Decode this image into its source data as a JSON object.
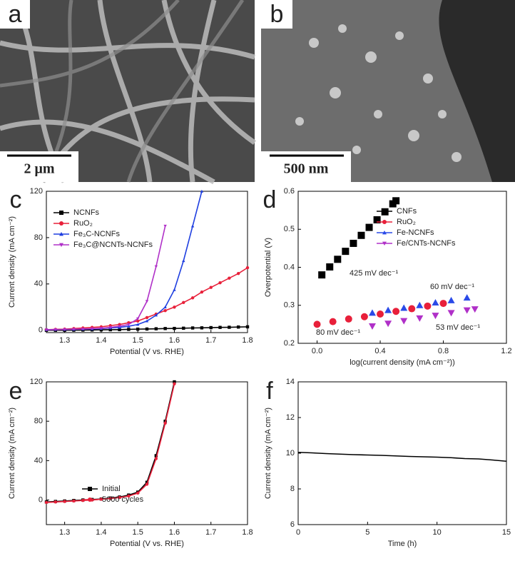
{
  "images": [
    {
      "label": "a",
      "scale_bar": "2 μm"
    },
    {
      "label": "b",
      "scale_bar": "500 nm"
    }
  ],
  "chart_data": [
    {
      "type": "line",
      "label": "c",
      "xlabel": "Potential (V vs. RHE)",
      "ylabel": "Current density (mA cm⁻²)",
      "xlim": [
        1.25,
        1.8
      ],
      "ylim": [
        -2,
        120
      ],
      "xticks": [
        1.3,
        1.4,
        1.5,
        1.6,
        1.7,
        1.8
      ],
      "yticks": [
        0,
        40,
        80,
        120
      ],
      "legend_loc": "upper left",
      "x": [
        1.25,
        1.275,
        1.3,
        1.325,
        1.35,
        1.375,
        1.4,
        1.425,
        1.45,
        1.475,
        1.5,
        1.525,
        1.55,
        1.575,
        1.6,
        1.625,
        1.65,
        1.675,
        1.7,
        1.725,
        1.75,
        1.775,
        1.8
      ],
      "series": [
        {
          "name": "NCNFs",
          "color": "#000000",
          "marker": "square",
          "values": [
            0,
            0,
            0,
            0.1,
            0.2,
            0.3,
            0.4,
            0.5,
            0.6,
            0.8,
            1,
            1.1,
            1.3,
            1.5,
            1.6,
            1.8,
            2,
            2.1,
            2.3,
            2.5,
            2.6,
            2.8,
            3
          ]
        },
        {
          "name": "RuO₂",
          "color": "#e8203a",
          "marker": "circle",
          "values": [
            0.5,
            0.8,
            1,
            1.5,
            2,
            2.5,
            3,
            4,
            5,
            6.5,
            8,
            11,
            14,
            17,
            20,
            24,
            28,
            33,
            37,
            41,
            45,
            49,
            54
          ]
        },
        {
          "name": "Fe₃C-NCNFs",
          "color": "#1f3fe0",
          "marker": "triangle",
          "values": [
            0.5,
            0.6,
            0.7,
            0.8,
            1,
            1.2,
            1.5,
            2,
            2.5,
            3.5,
            5,
            8,
            13,
            20,
            35,
            60,
            90,
            120,
            null,
            null,
            null,
            null,
            null
          ]
        },
        {
          "name": "Fe₃C@NCNTs-NCNFs",
          "color": "#b030c8",
          "marker": "triangle-down",
          "values": [
            0.5,
            0.6,
            0.7,
            0.9,
            1.1,
            1.4,
            1.8,
            2.5,
            3.5,
            5,
            10,
            25,
            55,
            90,
            null,
            null,
            null,
            null,
            null,
            null,
            null,
            null,
            null
          ]
        }
      ]
    },
    {
      "type": "scatter",
      "label": "d",
      "xlabel": "log(current density (mA cm⁻²))",
      "ylabel": "Overpotential (V)",
      "xlim": [
        -0.12,
        1.2
      ],
      "ylim": [
        0.2,
        0.6
      ],
      "xticks": [
        {
          "value": 0,
          "label": "0.0"
        },
        0.4,
        0.8,
        1.2
      ],
      "yticks": [
        0.2,
        0.3,
        0.4,
        0.5,
        0.6
      ],
      "legend_loc": "upper center",
      "annotations": [
        {
          "text": "425 mV dec⁻¹",
          "color": "#000000"
        },
        {
          "text": "60 mV dec⁻¹",
          "color": "#000000"
        },
        {
          "text": "80 mV dec⁻¹",
          "color": "#000000"
        },
        {
          "text": "53 mV dec⁻¹",
          "color": "#1a2a80"
        }
      ],
      "series": [
        {
          "name": "CNFs",
          "color": "#000000",
          "marker": "square",
          "x": [
            0.03,
            0.08,
            0.13,
            0.18,
            0.23,
            0.28,
            0.33,
            0.38,
            0.43,
            0.48,
            0.5
          ],
          "values": [
            0.38,
            0.401,
            0.421,
            0.442,
            0.463,
            0.484,
            0.505,
            0.525,
            0.546,
            0.567,
            0.575
          ]
        },
        {
          "name": "RuO₂",
          "color": "#e8203a",
          "marker": "circle",
          "x": [
            0,
            0.1,
            0.2,
            0.3,
            0.4,
            0.5,
            0.6,
            0.7,
            0.8
          ],
          "values": [
            0.25,
            0.257,
            0.264,
            0.27,
            0.277,
            0.284,
            0.291,
            0.298,
            0.305
          ]
        },
        {
          "name": "Fe-NCNFs",
          "color": "#2a4ae8",
          "marker": "triangle",
          "x": [
            0.35,
            0.45,
            0.55,
            0.65,
            0.75,
            0.85,
            0.95
          ],
          "values": [
            0.28,
            0.287,
            0.293,
            0.3,
            0.307,
            0.313,
            0.32
          ]
        },
        {
          "name": "Fe/CNTs-NCNFs",
          "color": "#b030c8",
          "marker": "triangle-down",
          "x": [
            0.35,
            0.45,
            0.55,
            0.65,
            0.75,
            0.85,
            0.95,
            1.0
          ],
          "values": [
            0.245,
            0.252,
            0.259,
            0.266,
            0.273,
            0.28,
            0.287,
            0.29
          ]
        }
      ]
    },
    {
      "type": "line",
      "label": "e",
      "xlabel": "Potential (V vs. RHE)",
      "ylabel": "Current density (mA cm⁻²)",
      "xlim": [
        1.25,
        1.8
      ],
      "ylim": [
        -25,
        120
      ],
      "xticks": [
        1.3,
        1.4,
        1.5,
        1.6,
        1.7,
        1.8
      ],
      "yticks": [
        0,
        40,
        80,
        120
      ],
      "legend_loc": "lower left",
      "x": [
        1.25,
        1.275,
        1.3,
        1.325,
        1.35,
        1.375,
        1.4,
        1.425,
        1.45,
        1.475,
        1.5,
        1.525,
        1.55,
        1.575,
        1.6
      ],
      "series": [
        {
          "name": "Initial",
          "color": "#000000",
          "marker": "square",
          "values": [
            -2,
            -1.5,
            -1,
            -0.5,
            0,
            0.5,
            1,
            2,
            3,
            5,
            8,
            18,
            45,
            80,
            120
          ]
        },
        {
          "name": "5000 cycles",
          "color": "#e8203a",
          "marker": "circle",
          "values": [
            -2.5,
            -2,
            -1.5,
            -1,
            -0.5,
            0,
            0.8,
            1.5,
            2.5,
            4,
            7,
            16,
            42,
            78,
            118
          ]
        }
      ]
    },
    {
      "type": "line",
      "label": "f",
      "xlabel": "Time (h)",
      "ylabel": "Current density (mA cm⁻²)",
      "xlim": [
        0,
        15
      ],
      "ylim": [
        6,
        14
      ],
      "xticks": [
        0,
        5,
        10,
        15
      ],
      "yticks": [
        6,
        8,
        10,
        12,
        14
      ],
      "color": "#000000",
      "x": [
        0,
        1,
        2,
        3,
        4,
        5,
        6,
        7,
        8,
        9,
        10,
        11,
        12,
        13,
        14,
        15
      ],
      "values": [
        10.05,
        10.02,
        9.98,
        9.95,
        9.92,
        9.9,
        9.88,
        9.85,
        9.82,
        9.8,
        9.78,
        9.75,
        9.7,
        9.68,
        9.62,
        9.55
      ]
    }
  ]
}
